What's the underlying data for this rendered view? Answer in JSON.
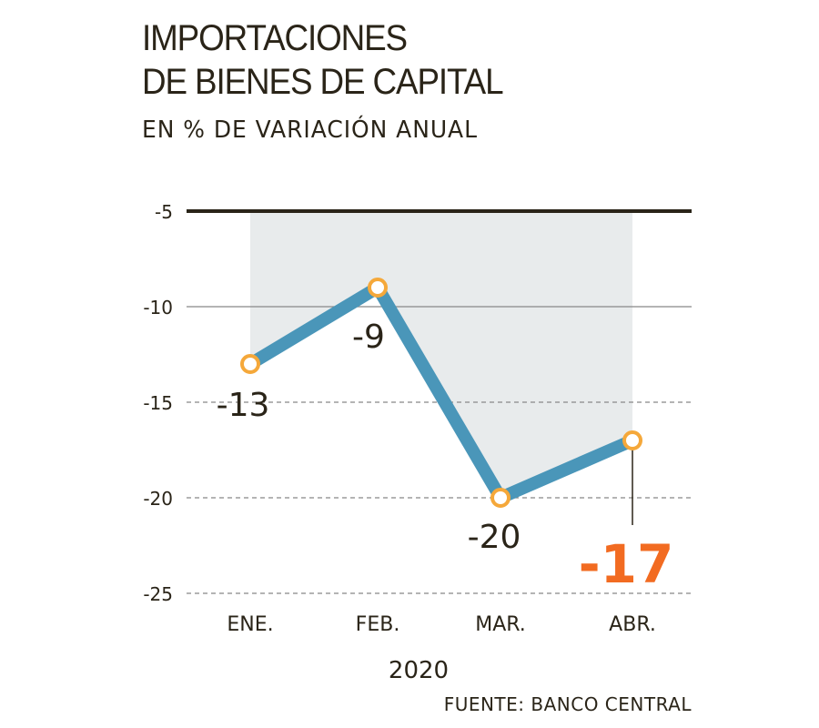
{
  "chart_data": {
    "type": "line",
    "title_lines": [
      "IMPORTACIONES",
      "DE BIENES DE CAPITAL"
    ],
    "subtitle": "EN % DE VARIACIÓN ANUAL",
    "categories": [
      "ENE.",
      "FEB.",
      "MAR.",
      "ABR."
    ],
    "values": [
      -13,
      -9,
      -20,
      -17
    ],
    "data_labels": [
      "-13",
      "-9",
      "-20",
      "-17"
    ],
    "xlabel": "2020",
    "ylabel": "",
    "ylim": [
      -25,
      -5
    ],
    "yticks": [
      -5,
      -10,
      -15,
      -20,
      -25
    ],
    "ytick_labels": [
      "-5",
      "-10",
      "-15",
      "-20",
      "-25"
    ],
    "grid": true,
    "highlight_index": 3,
    "source": "FUENTE: BANCO CENTRAL"
  },
  "colors": {
    "line": "#4a96b9",
    "marker": "#f5a83a",
    "area": "#e8ebec",
    "highlight": "#f26b21",
    "text": "#2a2418",
    "grid": "#888888"
  }
}
